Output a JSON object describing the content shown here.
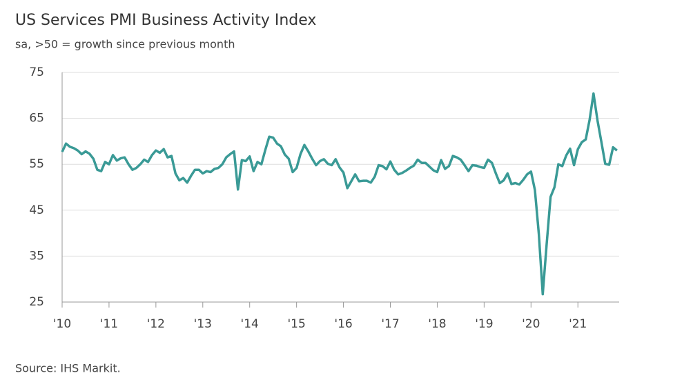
{
  "chart_data": {
    "type": "line",
    "title": "US Services PMI Business Activity Index",
    "subtitle": "sa, >50 = growth since previous month",
    "source": "Source: IHS Markit.",
    "color": "#3a9a96",
    "grid": true,
    "xlim": [
      2010,
      2021.88
    ],
    "ylim": [
      25,
      75
    ],
    "yticks": [
      25,
      35,
      45,
      55,
      65,
      75
    ],
    "xticks": [
      {
        "value": 2010,
        "label": "'10"
      },
      {
        "value": 2011,
        "label": "'11"
      },
      {
        "value": 2012,
        "label": "'12"
      },
      {
        "value": 2013,
        "label": "'13"
      },
      {
        "value": 2014,
        "label": "'14"
      },
      {
        "value": 2015,
        "label": "'15"
      },
      {
        "value": 2016,
        "label": "'16"
      },
      {
        "value": 2017,
        "label": "'17"
      },
      {
        "value": 2018,
        "label": "'18"
      },
      {
        "value": 2019,
        "label": "'19"
      },
      {
        "value": 2020,
        "label": "'20"
      },
      {
        "value": 2021,
        "label": "'21"
      }
    ],
    "x": [
      2010,
      2010.083,
      2010.167,
      2010.25,
      2010.333,
      2010.417,
      2010.5,
      2010.583,
      2010.667,
      2010.75,
      2010.833,
      2010.917,
      2011,
      2011.083,
      2011.167,
      2011.25,
      2011.333,
      2011.417,
      2011.5,
      2011.583,
      2011.667,
      2011.75,
      2011.833,
      2011.917,
      2012,
      2012.083,
      2012.167,
      2012.25,
      2012.333,
      2012.417,
      2012.5,
      2012.583,
      2012.667,
      2012.75,
      2012.833,
      2012.917,
      2013,
      2013.083,
      2013.167,
      2013.25,
      2013.333,
      2013.417,
      2013.5,
      2013.583,
      2013.667,
      2013.75,
      2013.833,
      2013.917,
      2014,
      2014.083,
      2014.167,
      2014.25,
      2014.333,
      2014.417,
      2014.5,
      2014.583,
      2014.667,
      2014.75,
      2014.833,
      2014.917,
      2015,
      2015.083,
      2015.167,
      2015.25,
      2015.333,
      2015.417,
      2015.5,
      2015.583,
      2015.667,
      2015.75,
      2015.833,
      2015.917,
      2016,
      2016.083,
      2016.167,
      2016.25,
      2016.333,
      2016.417,
      2016.5,
      2016.583,
      2016.667,
      2016.75,
      2016.833,
      2016.917,
      2017,
      2017.083,
      2017.167,
      2017.25,
      2017.333,
      2017.417,
      2017.5,
      2017.583,
      2017.667,
      2017.75,
      2017.833,
      2017.917,
      2018,
      2018.083,
      2018.167,
      2018.25,
      2018.333,
      2018.417,
      2018.5,
      2018.583,
      2018.667,
      2018.75,
      2018.833,
      2018.917,
      2019,
      2019.083,
      2019.167,
      2019.25,
      2019.333,
      2019.417,
      2019.5,
      2019.583,
      2019.667,
      2019.75,
      2019.833,
      2019.917,
      2020,
      2020.083,
      2020.167,
      2020.25,
      2020.333,
      2020.417,
      2020.5,
      2020.583,
      2020.667,
      2020.75,
      2020.833,
      2020.917,
      2021,
      2021.083,
      2021.167,
      2021.25,
      2021.333,
      2021.417,
      2021.5,
      2021.583,
      2021.667,
      2021.75,
      2021.833
    ],
    "values": [
      57.7,
      59.5,
      58.8,
      58.5,
      58.0,
      57.2,
      57.8,
      57.3,
      56.2,
      53.8,
      53.5,
      55.5,
      55.0,
      57.0,
      55.8,
      56.3,
      56.5,
      55.0,
      53.8,
      54.2,
      55.0,
      56.0,
      55.5,
      57.0,
      58.0,
      57.5,
      58.3,
      56.5,
      56.8,
      53.0,
      51.5,
      52.0,
      51.0,
      52.5,
      53.8,
      53.8,
      53.0,
      53.5,
      53.3,
      54.0,
      54.2,
      55.0,
      56.5,
      57.2,
      57.8,
      49.5,
      55.9,
      55.7,
      56.7,
      53.5,
      55.5,
      55.0,
      58.1,
      61.0,
      60.8,
      59.5,
      58.9,
      57.1,
      56.2,
      53.3,
      54.2,
      57.2,
      59.2,
      57.8,
      56.2,
      54.8,
      55.7,
      56.1,
      55.1,
      54.8,
      56.1,
      54.3,
      53.2,
      49.8,
      51.3,
      52.8,
      51.3,
      51.4,
      51.4,
      51.0,
      52.3,
      54.8,
      54.6,
      53.9,
      55.6,
      53.8,
      52.8,
      53.1,
      53.6,
      54.2,
      54.7,
      56.0,
      55.3,
      55.3,
      54.5,
      53.7,
      53.3,
      55.9,
      54.0,
      54.6,
      56.8,
      56.5,
      56.0,
      54.8,
      53.5,
      54.8,
      54.7,
      54.4,
      54.2,
      56.0,
      55.3,
      53.0,
      50.9,
      51.5,
      53.0,
      50.7,
      50.9,
      50.6,
      51.6,
      52.8,
      53.4,
      49.4,
      39.8,
      26.7,
      37.5,
      47.9,
      50.0,
      55.0,
      54.6,
      56.9,
      58.4,
      54.8,
      58.3,
      59.8,
      60.4,
      64.7,
      70.4,
      64.6,
      59.9,
      55.1,
      54.9,
      58.7,
      58.0
    ]
  }
}
